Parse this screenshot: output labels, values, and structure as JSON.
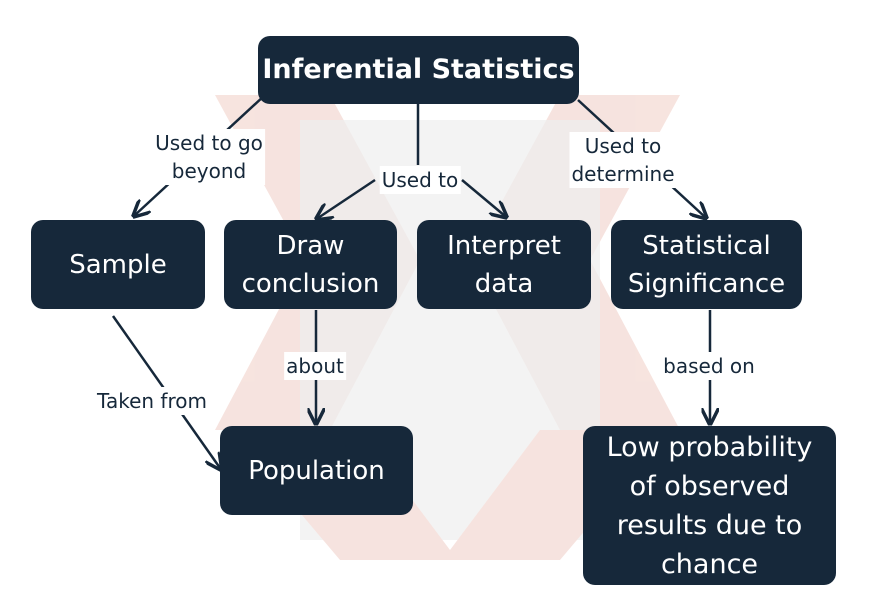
{
  "diagram": {
    "colors": {
      "node_fill": "#16283a",
      "node_text": "#ffffff",
      "edge": "#16283a",
      "label_text": "#16283a",
      "watermark_grey": "#e6e6e6",
      "watermark_red": "#f6e1dc"
    },
    "nodes": {
      "root": "Inferential Statistics",
      "sample": "Sample",
      "draw_conclusion": "Draw\nconclusion",
      "interpret_data": "Interpret\ndata",
      "significance": "Statistical\nSignificance",
      "population": "Population",
      "low_probability": "Low probability\nof observed\nresults due to\nchance"
    },
    "edge_labels": {
      "used_to_go_beyond": "Used to go\nbeyond",
      "used_to": "Used to",
      "used_to_determine": "Used to\ndetermine",
      "about": "about",
      "taken_from": "Taken from",
      "based_on": "based on"
    }
  }
}
